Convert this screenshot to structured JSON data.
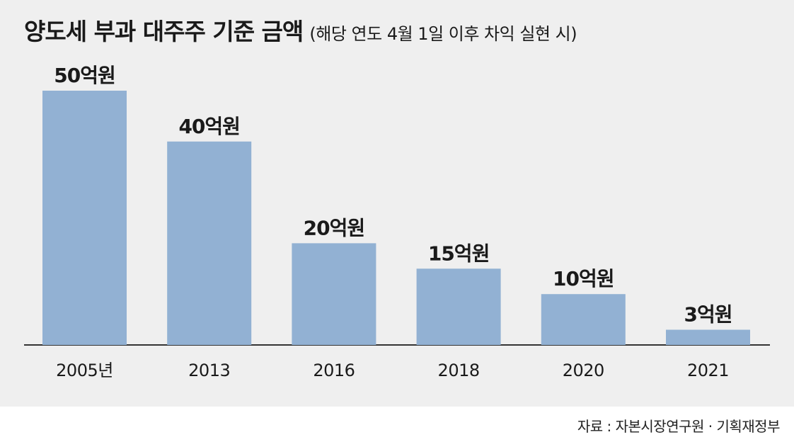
{
  "title": "양도세 부과 대주주 기준 금액",
  "subtitle": "(해당 연도 4월 1일 이후 차익 실현 시)",
  "source": "자료 : 자본시장연구원 · 기획재정부",
  "colors": {
    "bar": "#92b1d3",
    "background": "#efefef",
    "axis": "#333333"
  },
  "chart_data": {
    "type": "bar",
    "categories": [
      "2005년",
      "2013",
      "2016",
      "2018",
      "2020",
      "2021"
    ],
    "values": [
      50,
      40,
      20,
      15,
      10,
      3
    ],
    "value_labels": [
      "50억원",
      "40억원",
      "20억원",
      "15억원",
      "10억원",
      "3억원"
    ],
    "unit": "억원",
    "title": "양도세 부과 대주주 기준 금액",
    "subtitle": "(해당 연도 4월 1일 이후 차익 실현 시)",
    "xlabel": "",
    "ylabel": "",
    "ylim": [
      0,
      50
    ],
    "grid": false,
    "legend": "none"
  }
}
